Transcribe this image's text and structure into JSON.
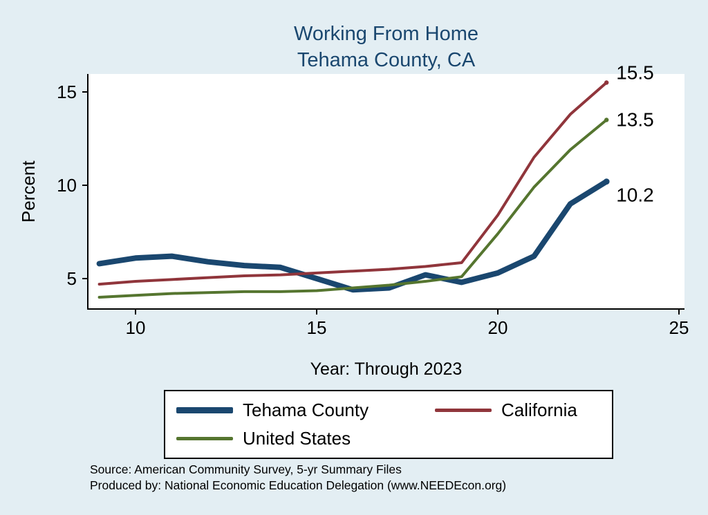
{
  "chart": {
    "title_line1": "Working From Home",
    "title_line2": "Tehama County, CA",
    "ylabel": "Percent",
    "xlabel": "Year: Through 2023"
  },
  "footer": {
    "source": "Source: American Community Survey, 5-yr Summary Files",
    "produced_by": "Produced by: National Economic Education Delegation (www.NEEDEcon.org)"
  },
  "colors": {
    "background": "#e3eef3",
    "plot_background": "#ffffff",
    "title": "#1a476f",
    "axis": "#000000",
    "navy": "#1a476f",
    "maroon": "#90353b",
    "olive": "#55752f"
  },
  "chart_data": {
    "type": "line",
    "title": "Working From Home — Tehama County, CA",
    "xlabel": "Year: Through 2023",
    "ylabel": "Percent",
    "grid": false,
    "legend_position": "bottom",
    "x": [
      9,
      10,
      11,
      12,
      13,
      14,
      15,
      16,
      17,
      18,
      19,
      20,
      21,
      22,
      23
    ],
    "xticks": [
      10,
      15,
      20,
      25
    ],
    "yticks": [
      5,
      10,
      15
    ],
    "xlim": [
      8.7,
      25.2
    ],
    "ylim": [
      3.4,
      16.0
    ],
    "series": [
      {
        "name": "Tehama County",
        "color": "#1a476f",
        "width": 8,
        "values": [
          5.8,
          6.1,
          6.2,
          5.9,
          5.7,
          5.6,
          5.0,
          4.4,
          4.5,
          5.2,
          4.8,
          5.3,
          6.2,
          9.0,
          10.2
        ],
        "end_label": "10.2"
      },
      {
        "name": "California",
        "color": "#90353b",
        "width": 4,
        "values": [
          4.7,
          4.85,
          4.95,
          5.05,
          5.15,
          5.2,
          5.3,
          5.4,
          5.5,
          5.65,
          5.85,
          8.4,
          11.5,
          13.8,
          15.5
        ],
        "end_label": "15.5"
      },
      {
        "name": "United States",
        "color": "#55752f",
        "width": 4,
        "values": [
          4.0,
          4.1,
          4.2,
          4.25,
          4.3,
          4.3,
          4.35,
          4.5,
          4.65,
          4.85,
          5.1,
          7.4,
          9.9,
          11.9,
          13.5
        ],
        "end_label": "13.5"
      }
    ]
  }
}
